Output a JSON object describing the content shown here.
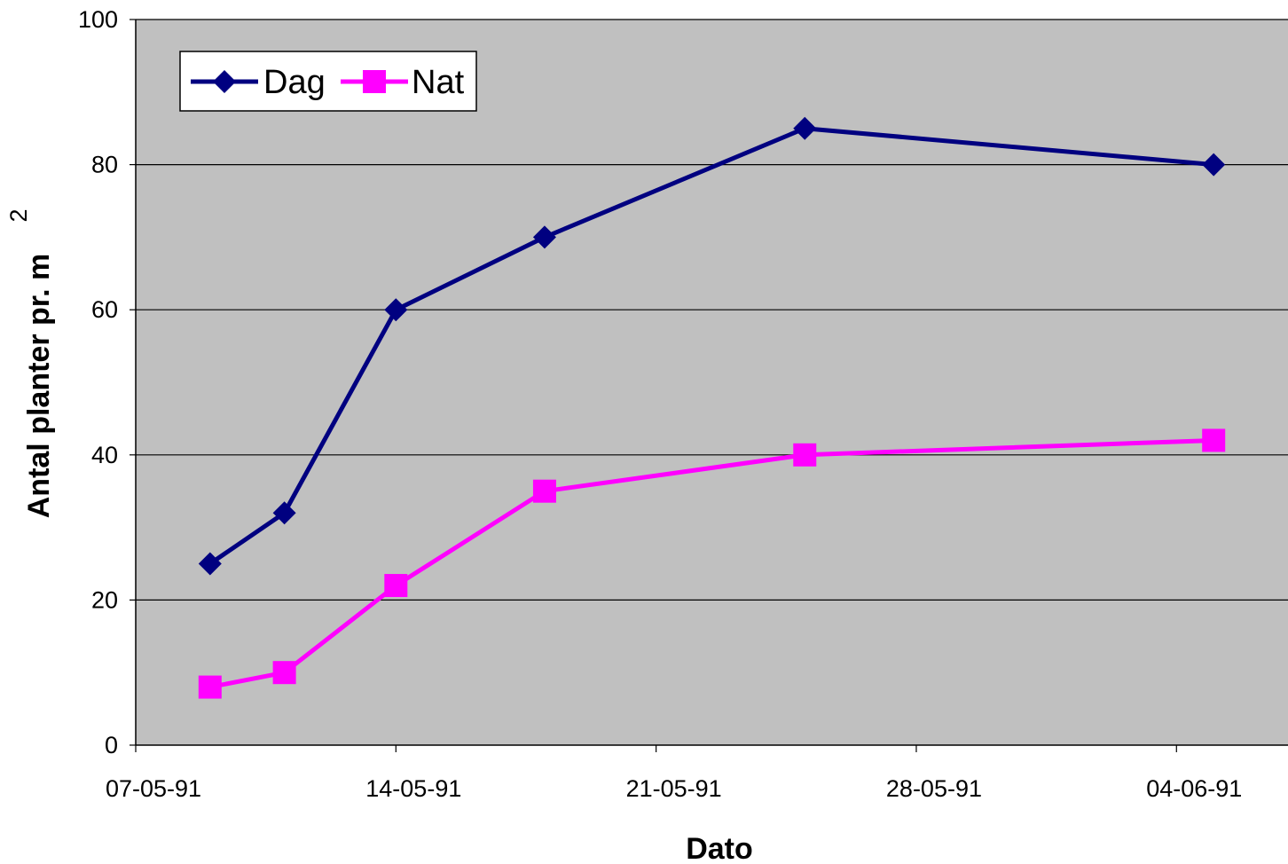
{
  "chart_data": {
    "type": "line",
    "title": "",
    "xlabel": "Dato",
    "ylabel_main": "Antal planter pr. m",
    "ylabel_superscript": "2",
    "ylim": [
      0,
      100
    ],
    "yticks": [
      0,
      20,
      40,
      60,
      80,
      100
    ],
    "ytick_labels": [
      "0",
      "20",
      "40",
      "60",
      "80",
      "100"
    ],
    "xlim": [
      "1991-05-07",
      "1991-06-07"
    ],
    "xticks": [
      "1991-05-07",
      "1991-05-14",
      "1991-05-21",
      "1991-05-28",
      "1991-06-04"
    ],
    "xtick_labels": [
      "07-05-91",
      "14-05-91",
      "21-05-91",
      "28-05-91",
      "04-06-91"
    ],
    "grid": "horizontal",
    "legend_position": "top-left",
    "background_color": "#c0c0c0",
    "x": [
      "1991-05-09",
      "1991-05-11",
      "1991-05-14",
      "1991-05-18",
      "1991-05-25",
      "1991-06-05"
    ],
    "series": [
      {
        "name": "Dag",
        "color": "#000080",
        "marker": "diamond",
        "values": [
          25,
          32,
          60,
          70,
          85,
          80
        ]
      },
      {
        "name": "Nat",
        "color": "#ff00ff",
        "marker": "square",
        "values": [
          8,
          10,
          22,
          35,
          40,
          42
        ]
      }
    ]
  }
}
